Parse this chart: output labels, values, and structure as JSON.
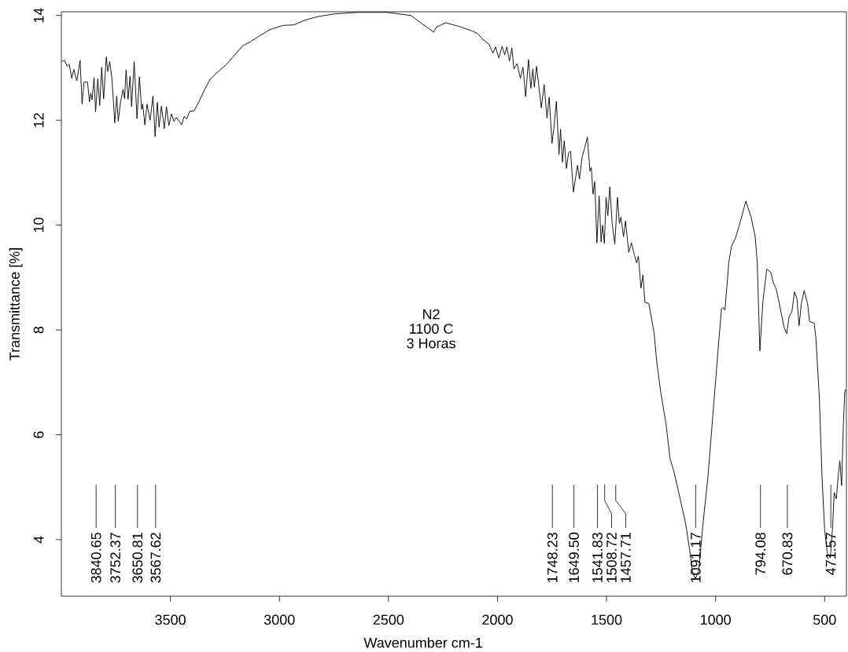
{
  "chart_data": {
    "type": "line",
    "xlabel": "Wavenumber cm-1",
    "ylabel": "Transmittance [%]",
    "xlim": [
      4000,
      400
    ],
    "ylim": [
      2.92,
      14.07
    ],
    "xticks": [
      3500,
      3000,
      2500,
      2000,
      1500,
      1000,
      500
    ],
    "yticks": [
      4,
      6,
      8,
      10,
      12,
      14
    ],
    "series": [
      {
        "color": "#000000",
        "x": [
          3998,
          3986,
          3974,
          3964,
          3952,
          3943,
          3929,
          3914,
          3905,
          3896,
          3880,
          3871,
          3865,
          3859,
          3850,
          3843,
          3833,
          3824,
          3815,
          3806,
          3794,
          3787,
          3778,
          3768,
          3755,
          3746,
          3739,
          3729,
          3717,
          3710,
          3703,
          3694,
          3685,
          3678,
          3666,
          3653,
          3642,
          3632,
          3627,
          3617,
          3607,
          3593,
          3580,
          3570,
          3560,
          3552,
          3541,
          3528,
          3518,
          3507,
          3495,
          3484,
          3474,
          3462,
          3449,
          3437,
          3424,
          3412,
          3392,
          3368,
          3343,
          3318,
          3281,
          3244,
          3206,
          3169,
          3132,
          3095,
          3044,
          2983,
          2933,
          2884,
          2821,
          2747,
          2634,
          2510,
          2398,
          2292,
          2280,
          2237,
          2175,
          2114,
          2093,
          2069,
          2039,
          2021,
          2009,
          1994,
          1979,
          1967,
          1957,
          1945,
          1934,
          1925,
          1910,
          1895,
          1883,
          1871,
          1858,
          1847,
          1838,
          1831,
          1821,
          1799,
          1786,
          1773,
          1763,
          1750,
          1742,
          1730,
          1718,
          1711,
          1702,
          1694,
          1684,
          1674,
          1665,
          1652,
          1642,
          1633,
          1624,
          1612,
          1600,
          1588,
          1576,
          1570,
          1562,
          1554,
          1544,
          1534,
          1525,
          1518,
          1510,
          1502,
          1494,
          1485,
          1474,
          1462,
          1450,
          1441,
          1434,
          1422,
          1413,
          1398,
          1386,
          1372,
          1362,
          1354,
          1342,
          1333,
          1324,
          1306,
          1282,
          1270,
          1251,
          1227,
          1209,
          1191,
          1161,
          1137,
          1119,
          1107,
          1093,
          1077,
          1059,
          1035,
          1011,
          987,
          973,
          966,
          957,
          939,
          927,
          909,
          891,
          861,
          837,
          819,
          809,
          797,
          783,
          765,
          747,
          735,
          723,
          705,
          686,
          674,
          663,
          650,
          638,
          627,
          617,
          607,
          594,
          578,
          569,
          548,
          540,
          524,
          512,
          500,
          488,
          474,
          464,
          456,
          446,
          438,
          430,
          422,
          414,
          407,
          401
        ],
        "values": [
          13.12,
          13.15,
          13.03,
          13.07,
          12.8,
          12.97,
          12.75,
          13.14,
          12.31,
          12.73,
          12.73,
          12.35,
          12.52,
          12.39,
          12.81,
          12.16,
          12.79,
          12.28,
          13.01,
          12.41,
          13.21,
          12.93,
          13.12,
          12.8,
          11.95,
          12.46,
          11.98,
          12.34,
          12.59,
          12.41,
          12.96,
          12.4,
          12.84,
          12.26,
          13.12,
          12.03,
          12.83,
          12.21,
          12.31,
          11.91,
          12.31,
          12.0,
          12.46,
          11.69,
          12.34,
          11.87,
          12.27,
          11.84,
          12.26,
          11.9,
          12.12,
          11.98,
          12.05,
          12.0,
          11.91,
          12.07,
          12.03,
          12.17,
          12.18,
          12.36,
          12.59,
          12.78,
          12.93,
          13.06,
          13.24,
          13.42,
          13.5,
          13.6,
          13.73,
          13.81,
          13.82,
          13.91,
          13.98,
          14.03,
          14.06,
          14.06,
          14.0,
          13.68,
          13.78,
          13.86,
          13.79,
          13.7,
          13.66,
          13.55,
          13.45,
          13.28,
          13.4,
          13.19,
          13.41,
          13.25,
          13.4,
          13.13,
          13.38,
          12.98,
          13.08,
          12.8,
          13.01,
          12.45,
          13.16,
          12.61,
          12.98,
          12.63,
          13.03,
          12.24,
          12.68,
          12.04,
          12.44,
          11.56,
          11.83,
          12.36,
          11.35,
          11.83,
          11.2,
          11.61,
          11.08,
          11.38,
          11.41,
          10.63,
          10.9,
          11.14,
          10.88,
          11.3,
          11.48,
          11.68,
          11.03,
          11.1,
          10.59,
          10.83,
          9.66,
          10.56,
          9.68,
          10.0,
          9.65,
          10.53,
          10.18,
          10.73,
          10.03,
          9.64,
          10.53,
          10.03,
          10.15,
          9.78,
          10.08,
          9.48,
          9.66,
          9.43,
          9.28,
          9.41,
          8.8,
          9.05,
          8.53,
          8.5,
          7.95,
          7.4,
          6.8,
          6.2,
          5.55,
          5.3,
          4.75,
          4.3,
          3.81,
          3.41,
          3.25,
          3.41,
          4.25,
          5.2,
          6.45,
          7.7,
          8.4,
          8.43,
          8.38,
          9.3,
          9.6,
          9.75,
          10.0,
          10.46,
          10.15,
          9.8,
          9.3,
          7.6,
          8.55,
          9.16,
          9.1,
          8.9,
          8.8,
          8.45,
          8.05,
          7.93,
          8.25,
          8.35,
          8.73,
          8.6,
          8.08,
          8.5,
          8.75,
          8.5,
          8.16,
          8.13,
          7.85,
          6.7,
          5.2,
          4.2,
          3.75,
          3.65,
          4.2,
          4.9,
          4.78,
          5.2,
          5.5,
          5.03,
          6.2,
          6.85,
          6.85
        ]
      }
    ],
    "annotations": [
      "N2",
      "1100 C",
      "3 Horas",
      {
        "text": "3840.65",
        "x": 3840.65
      },
      {
        "text": "3752.37",
        "x": 3752.37
      },
      {
        "text": "3650.81",
        "x": 3650.81
      },
      {
        "text": "3567.62",
        "x": 3567.62
      },
      {
        "text": "1748.23",
        "x": 1748.23
      },
      {
        "text": "1649.50",
        "x": 1649.5
      },
      {
        "text": "1541.83",
        "x": 1541.83
      },
      {
        "text": "1508.72",
        "x": 1508.72
      },
      {
        "text": "1457.71",
        "x": 1457.71
      },
      {
        "text": "1091.17",
        "x": 1091.17
      },
      {
        "text": "794.08",
        "x": 794.08
      },
      {
        "text": "670.83",
        "x": 670.83
      },
      {
        "text": "471.57",
        "x": 471.57
      }
    ]
  }
}
